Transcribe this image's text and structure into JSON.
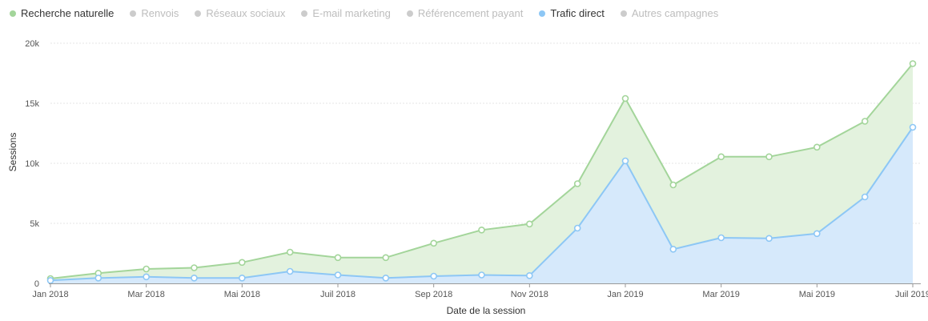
{
  "legend": [
    {
      "label": "Recherche naturelle",
      "color": "#a3d59a",
      "active": true
    },
    {
      "label": "Renvois",
      "color": "#cccccc",
      "active": false
    },
    {
      "label": "Réseaux sociaux",
      "color": "#cccccc",
      "active": false
    },
    {
      "label": "E-mail marketing",
      "color": "#cccccc",
      "active": false
    },
    {
      "label": "Référencement payant",
      "color": "#cccccc",
      "active": false
    },
    {
      "label": "Trafic direct",
      "color": "#8dc7f5",
      "active": true
    },
    {
      "label": "Autres campagnes",
      "color": "#cccccc",
      "active": false
    }
  ],
  "chart_data": {
    "type": "area",
    "stacked": false,
    "xlabel": "Date de la session",
    "ylabel": "Sessions",
    "ylim": [
      0,
      20000
    ],
    "yticks": [
      0,
      5000,
      10000,
      15000,
      20000
    ],
    "ytick_labels": [
      "0",
      "5k",
      "10k",
      "15k",
      "20k"
    ],
    "x": [
      "Jan 2018",
      "Fév 2018",
      "Mar 2018",
      "Avr 2018",
      "Mai 2018",
      "Juin 2018",
      "Juil 2018",
      "Août 2018",
      "Sep 2018",
      "Oct 2018",
      "Nov 2018",
      "Déc 2018",
      "Jan 2019",
      "Fév 2019",
      "Mar 2019",
      "Avr 2019",
      "Mai 2019",
      "Juin 2019",
      "Juil 2019"
    ],
    "xtick_labels": [
      "Jan 2018",
      "",
      "Mar 2018",
      "",
      "Mai 2018",
      "",
      "Juil 2018",
      "",
      "Sep 2018",
      "",
      "Nov 2018",
      "",
      "Jan 2019",
      "",
      "Mar 2019",
      "",
      "Mai 2019",
      "",
      "Juil 2019"
    ],
    "grid": true,
    "legend_position": "top-left",
    "series": [
      {
        "name": "Recherche naturelle",
        "color": "#a3d59a",
        "fill": "#e3f2de",
        "values": [
          400,
          850,
          1200,
          1300,
          1750,
          2600,
          2150,
          2150,
          3350,
          4450,
          4950,
          8300,
          15400,
          8200,
          10550,
          10550,
          11350,
          13500,
          18300
        ]
      },
      {
        "name": "Trafic direct",
        "color": "#8dc7f5",
        "fill": "#d6e9fb",
        "values": [
          250,
          450,
          550,
          450,
          450,
          1000,
          700,
          450,
          600,
          700,
          650,
          4600,
          10200,
          2850,
          3800,
          3750,
          4150,
          7200,
          13000
        ]
      }
    ]
  }
}
